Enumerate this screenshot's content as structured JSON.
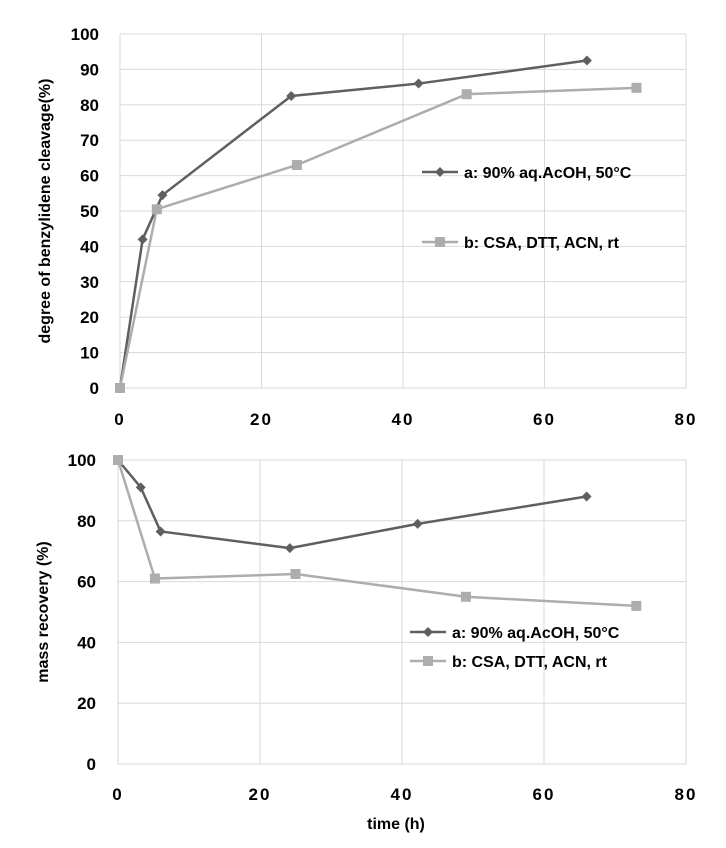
{
  "chart_data": [
    {
      "type": "line",
      "title": "",
      "xlabel": "",
      "ylabel": "degree of benzylidene cleavage(%)",
      "xlim": [
        0,
        80
      ],
      "ylim": [
        0,
        100
      ],
      "xticks": [
        0,
        20,
        40,
        60,
        80
      ],
      "yticks": [
        0,
        10,
        20,
        30,
        40,
        50,
        60,
        70,
        80,
        90,
        100
      ],
      "grid": true,
      "legend": "right",
      "series": [
        {
          "name": "a: 90% aq.AcOH, 50°C",
          "marker": "diamond",
          "color": "#5f5f5f",
          "x": [
            0,
            3.2,
            6,
            24.2,
            42.2,
            66
          ],
          "y": [
            0,
            42,
            54.5,
            82.5,
            86,
            92.5
          ]
        },
        {
          "name": "b: CSA, DTT, ACN, rt",
          "marker": "square",
          "color": "#adadad",
          "x": [
            0,
            5.2,
            25,
            49,
            73
          ],
          "y": [
            0,
            50.5,
            63,
            83,
            84.8
          ]
        }
      ]
    },
    {
      "type": "line",
      "title": "",
      "xlabel": "time (h)",
      "ylabel": "mass recovery (%)",
      "xlim": [
        0,
        80
      ],
      "ylim": [
        0,
        100
      ],
      "xticks": [
        0,
        20,
        40,
        60,
        80
      ],
      "yticks": [
        0,
        20,
        40,
        60,
        80,
        100
      ],
      "grid": true,
      "legend": "bottom-right",
      "series": [
        {
          "name": "a: 90% aq.AcOH, 50°C",
          "marker": "diamond",
          "color": "#5f5f5f",
          "x": [
            0,
            3.2,
            6,
            24.2,
            42.2,
            66
          ],
          "y": [
            100,
            91,
            76.5,
            71,
            79,
            88
          ]
        },
        {
          "name": "b: CSA, DTT, ACN, rt",
          "marker": "square",
          "color": "#adadad",
          "x": [
            0,
            5.2,
            25,
            49,
            73
          ],
          "y": [
            100,
            61,
            62.5,
            55,
            52
          ]
        }
      ]
    }
  ]
}
